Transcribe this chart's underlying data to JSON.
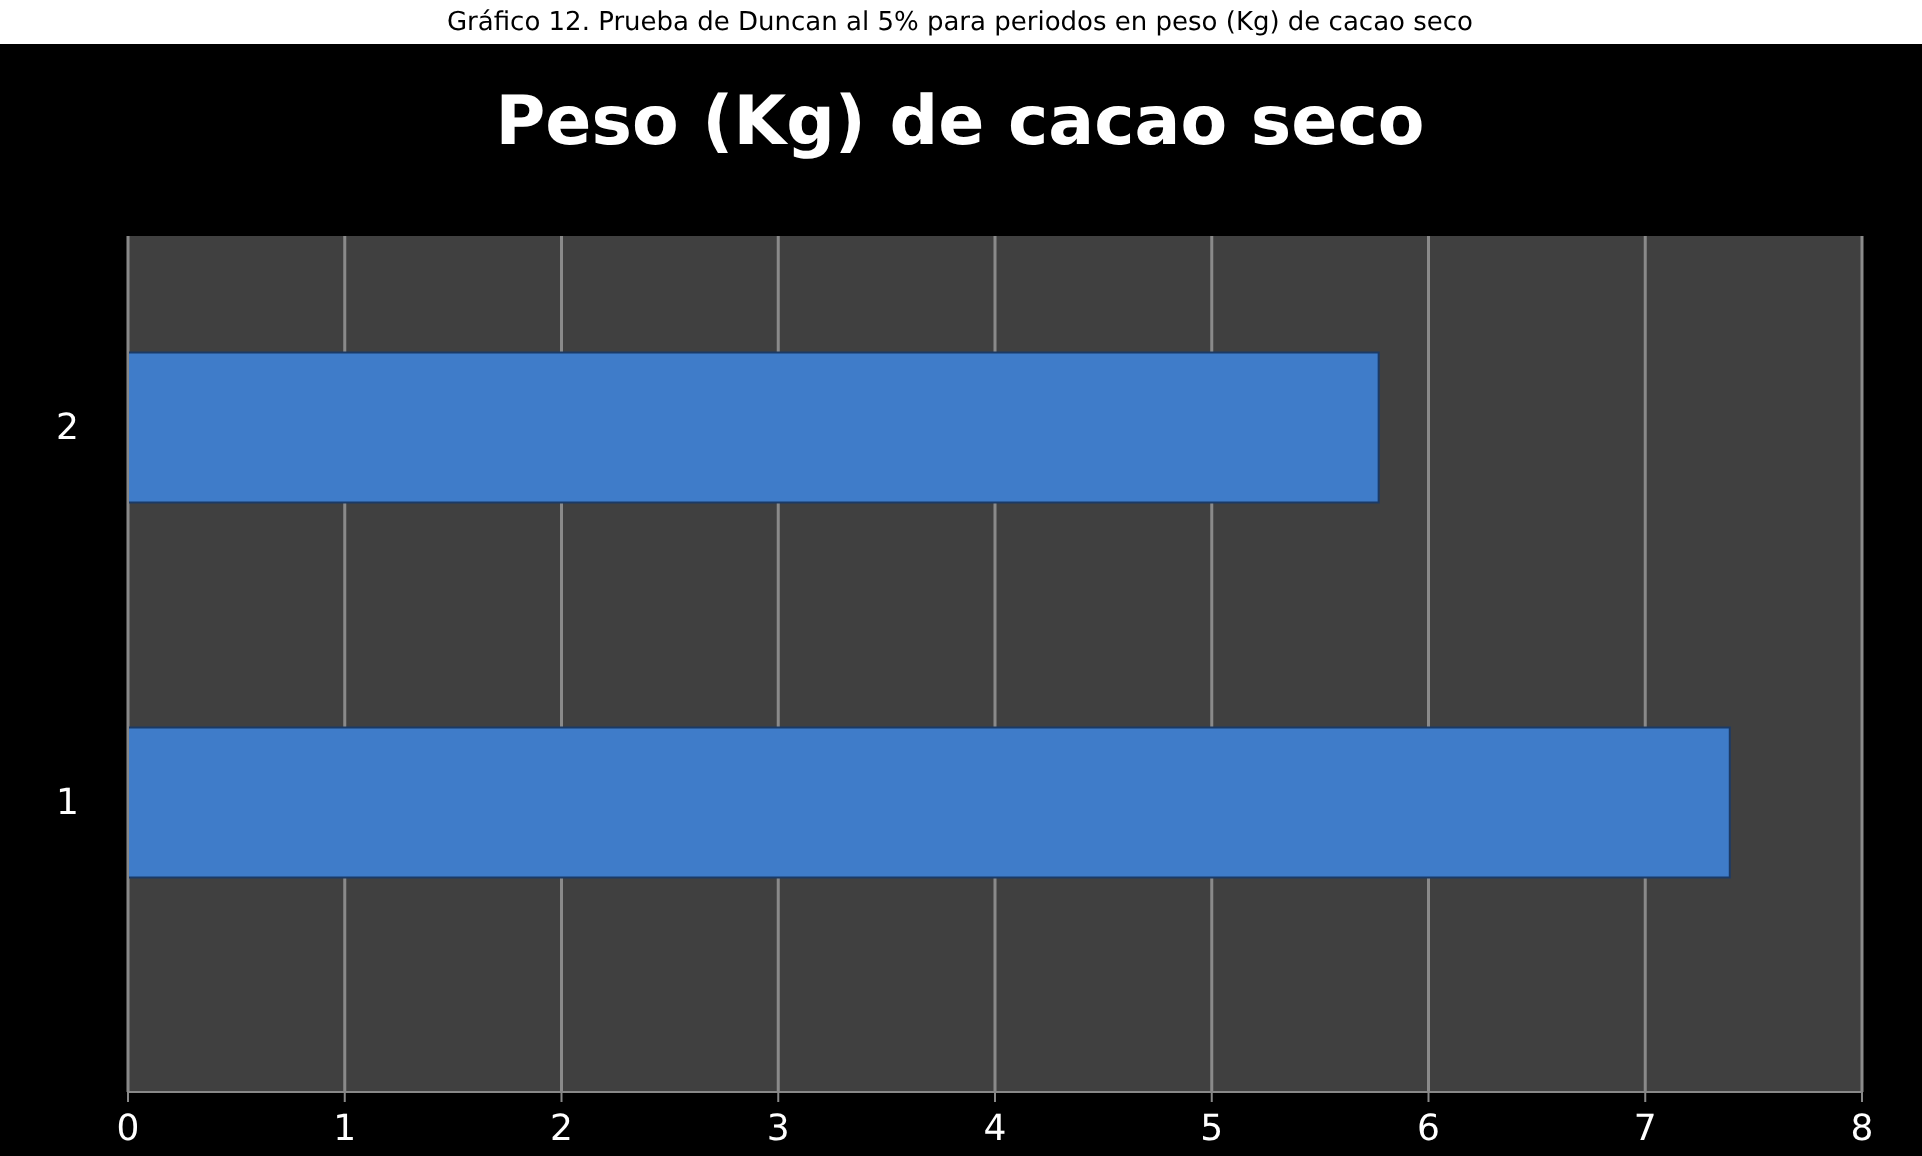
{
  "chart_data": {
    "type": "bar",
    "orientation": "horizontal",
    "title": "Peso (Kg) de cacao seco",
    "annotations": [
      "Gráfico 12. Prueba de Duncan al 5% para periodos en peso (Kg) de cacao seco"
    ],
    "categories": [
      "2",
      "1"
    ],
    "values": [
      5.77,
      7.39
    ],
    "color": "#3f7cc9",
    "xlim": [
      0,
      8
    ],
    "xticks": [
      0,
      1,
      2,
      3,
      4,
      5,
      6,
      7,
      8
    ],
    "grid": "x"
  }
}
